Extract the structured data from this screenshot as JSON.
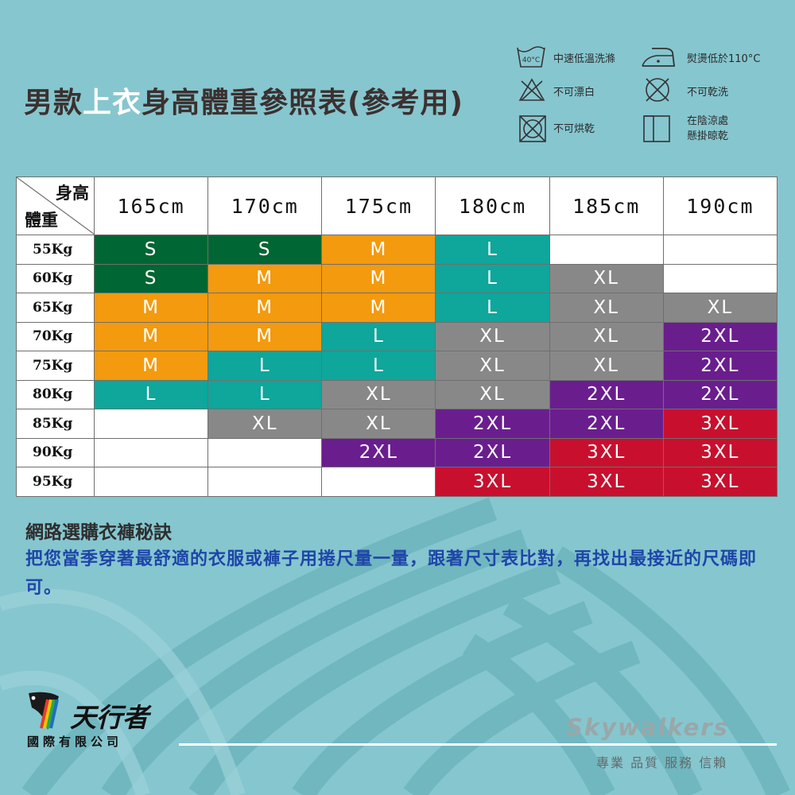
{
  "title": {
    "part1": "男款",
    "part2": "上衣",
    "part3": "身高體重參照表(參考用)"
  },
  "care": [
    {
      "icon": "wash-40-icon",
      "label": "中速低溫洗滌",
      "temp": "40°C"
    },
    {
      "icon": "iron-low-icon",
      "label": "熨燙低於110°C"
    },
    {
      "icon": "no-bleach-icon",
      "label": "不可漂白"
    },
    {
      "icon": "no-dryclean-icon",
      "label": "不可乾洗"
    },
    {
      "icon": "no-tumble-dry-icon",
      "label": "不可烘乾"
    },
    {
      "icon": "hang-dry-shade-icon",
      "label_line1": "在陰涼處",
      "label_line2": "懸掛晾乾"
    }
  ],
  "table": {
    "corner_height": "身高",
    "corner_weight": "體重",
    "heights": [
      "165cm",
      "170cm",
      "175cm",
      "180cm",
      "185cm",
      "190cm"
    ],
    "rows": [
      {
        "weight": "55Kg",
        "sizes": [
          "S",
          "S",
          "M",
          "L",
          "",
          ""
        ]
      },
      {
        "weight": "60Kg",
        "sizes": [
          "S",
          "M",
          "M",
          "L",
          "XL",
          ""
        ]
      },
      {
        "weight": "65Kg",
        "sizes": [
          "M",
          "M",
          "M",
          "L",
          "XL",
          "XL"
        ]
      },
      {
        "weight": "70Kg",
        "sizes": [
          "M",
          "M",
          "L",
          "XL",
          "XL",
          "2XL"
        ]
      },
      {
        "weight": "75Kg",
        "sizes": [
          "M",
          "L",
          "L",
          "XL",
          "XL",
          "2XL"
        ]
      },
      {
        "weight": "80Kg",
        "sizes": [
          "L",
          "L",
          "XL",
          "XL",
          "2XL",
          "2XL"
        ]
      },
      {
        "weight": "85Kg",
        "sizes": [
          "",
          "XL",
          "XL",
          "2XL",
          "2XL",
          "3XL"
        ]
      },
      {
        "weight": "90Kg",
        "sizes": [
          "",
          "",
          "2XL",
          "2XL",
          "3XL",
          "3XL"
        ]
      },
      {
        "weight": "95Kg",
        "sizes": [
          "",
          "",
          "",
          "3XL",
          "3XL",
          "3XL"
        ]
      }
    ],
    "size_colors": {
      "S": "#006633",
      "M": "#f39a0e",
      "L": "#0fa69b",
      "XL": "#888888",
      "2XL": "#6a1e8e",
      "3XL": "#c8102e"
    }
  },
  "tips": {
    "heading": "網路選購衣褲秘訣",
    "body": "把您當季穿著最舒適的衣服或褲子用捲尺量一量，跟著尺寸表比對，再找出最接近的尺碼即可。"
  },
  "footer": {
    "company_name": "天行者",
    "company_sub": "國際有限公司",
    "brand": "Skywalkers",
    "slogan": "專業 品質 服務 信賴"
  },
  "colors": {
    "background": "#86c6cf",
    "title": "#3b3130",
    "tips_body": "#1e46a8"
  }
}
